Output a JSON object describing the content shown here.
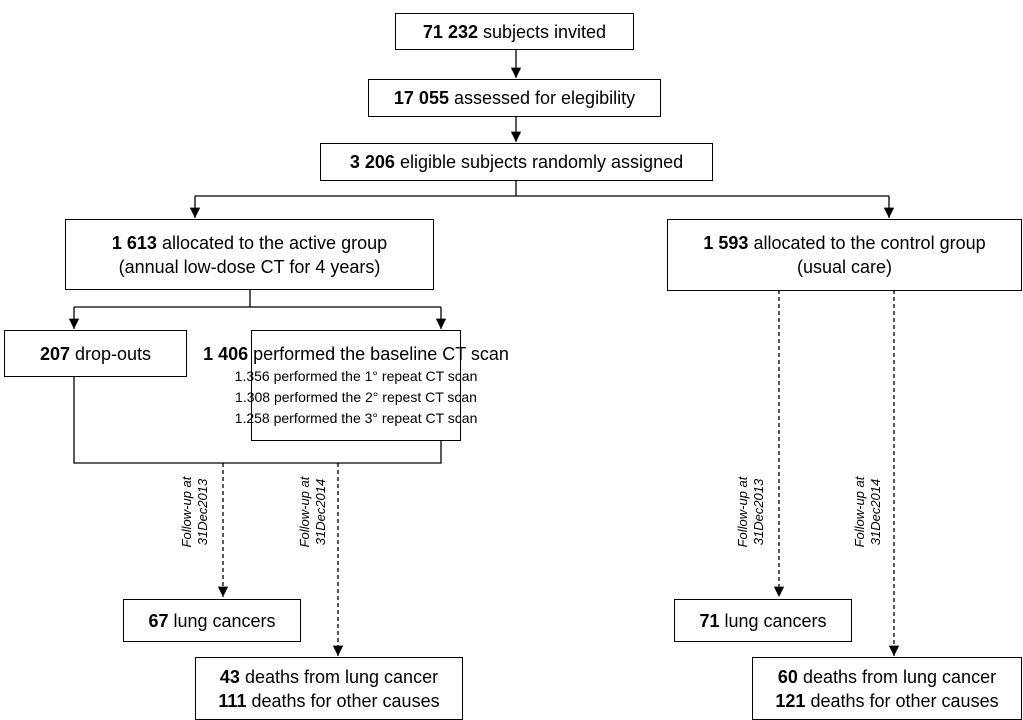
{
  "nodes": [
    {
      "count": "71 232",
      "label": "subjects invited"
    },
    {
      "count": "17 055",
      "label": "assessed for elegibility"
    },
    {
      "count": "3 206",
      "label": "eligible subjects randomly assigned"
    },
    {
      "count": "1 613",
      "label": "allocated to the active group",
      "note": "(annual low-dose CT for 4 years)"
    },
    {
      "count": "1 593",
      "label": "allocated to the control group",
      "note": "(usual care)"
    },
    {
      "count": "207",
      "label": "drop-outs"
    },
    {
      "count": "1 406",
      "label": "performed the baseline CT scan",
      "details": [
        "1.356 performed the 1° repeat CT scan",
        "1.308 performed the 2° repest CT scan",
        "1.258 performed the 3° repeat CT scan"
      ]
    },
    {
      "count": "67",
      "label": "lung cancers"
    },
    {
      "lines": [
        {
          "count": "43",
          "label": "deaths from lung cancer"
        },
        {
          "count": "111",
          "label": "deaths for other causes"
        }
      ]
    },
    {
      "count": "71",
      "label": "lung cancers"
    },
    {
      "lines": [
        {
          "count": "60",
          "label": "deaths from lung cancer"
        },
        {
          "count": "121",
          "label": "deaths for other causes"
        }
      ]
    }
  ],
  "follow_up_labels": [
    {
      "line1": "Follow-up at",
      "line2": "31Dec2013"
    },
    {
      "line1": "Follow-up at",
      "line2": "31Dec2014"
    },
    {
      "line1": "Follow-up at",
      "line2": "31Dec2013"
    },
    {
      "line1": "Follow-up at",
      "line2": "31Dec2014"
    }
  ]
}
